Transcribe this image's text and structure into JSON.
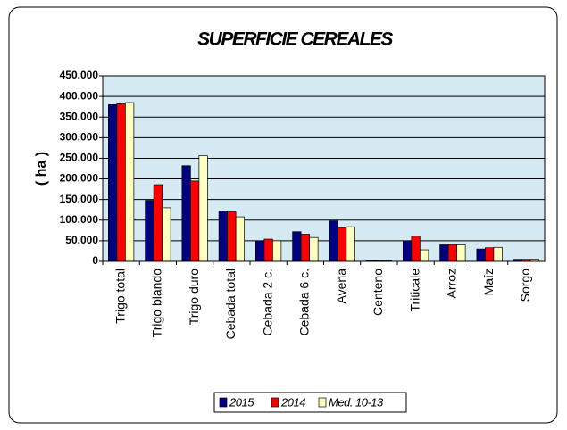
{
  "chart_data": {
    "type": "bar",
    "title": "SUPERFICIE CEREALES",
    "y_label": "( ha )",
    "categories": [
      "Trigo total",
      "Trigo blando",
      "Trigo duro",
      "Cebada total",
      "Cebada 2 c.",
      "Cebada 6 c.",
      "Avena",
      "Centeno",
      "Triticale",
      "Arroz",
      "Maíz",
      "Sorgo"
    ],
    "series": [
      {
        "name": "2015",
        "color": "#000080",
        "values": [
          380000,
          148000,
          232000,
          122000,
          50000,
          72000,
          98000,
          2000,
          50000,
          40000,
          30000,
          5000
        ]
      },
      {
        "name": "2014",
        "color": "#ff0000",
        "values": [
          382000,
          186000,
          195000,
          120000,
          54000,
          66000,
          82000,
          2000,
          62000,
          41000,
          33000,
          5000
        ]
      },
      {
        "name": "Med. 10-13",
        "color": "#ffffc0",
        "values": [
          385000,
          130000,
          256000,
          108000,
          50000,
          58000,
          84000,
          2000,
          28000,
          40000,
          34000,
          5000
        ]
      }
    ],
    "ylim": [
      0,
      450000
    ],
    "yticks": [
      0,
      {
        "value": 50000,
        "label": "50.000"
      },
      {
        "value": 100000,
        "label": "100.000"
      },
      {
        "value": 150000,
        "label": "150.000"
      },
      {
        "value": 200000,
        "label": "200.000"
      },
      {
        "value": 250000,
        "label": "250.000"
      },
      {
        "value": 300000,
        "label": "300.000"
      },
      {
        "value": 350000,
        "label": "350.000"
      },
      {
        "value": 400000,
        "label": "400.000"
      },
      {
        "value": 450000,
        "label": "450.000"
      }
    ],
    "grid": true,
    "legend": "bottom"
  }
}
